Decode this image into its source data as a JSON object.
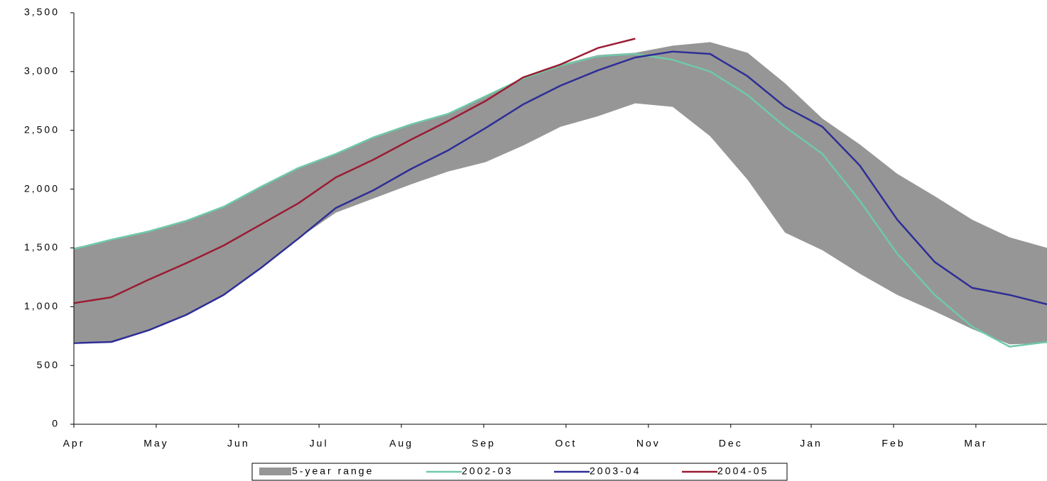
{
  "chart_data": {
    "type": "line",
    "x": [
      0,
      2,
      4,
      6,
      8,
      10,
      12,
      14,
      16,
      18,
      20,
      22,
      24,
      26,
      28,
      30,
      32,
      34,
      36,
      38,
      40,
      42,
      44,
      46,
      48,
      50,
      52
    ],
    "xlim": [
      0,
      52
    ],
    "xticks": [
      {
        "value": 0,
        "label": "Apr"
      },
      {
        "value": 4.4,
        "label": "May"
      },
      {
        "value": 8.8,
        "label": "Jun"
      },
      {
        "value": 13.1,
        "label": "Jul"
      },
      {
        "value": 17.5,
        "label": "Aug"
      },
      {
        "value": 21.9,
        "label": "Sep"
      },
      {
        "value": 26.3,
        "label": "Oct"
      },
      {
        "value": 30.7,
        "label": "Nov"
      },
      {
        "value": 35.1,
        "label": "Dec"
      },
      {
        "value": 39.4,
        "label": "Jan"
      },
      {
        "value": 43.8,
        "label": "Feb"
      },
      {
        "value": 48.2,
        "label": "Mar"
      }
    ],
    "ylim": [
      0,
      3500
    ],
    "yticks": [
      0,
      500,
      {
        "value": 1000,
        "label": "1,000"
      },
      {
        "value": 1500,
        "label": "1,500"
      },
      {
        "value": 2000,
        "label": "2,000"
      },
      {
        "value": 2500,
        "label": "2,500"
      },
      {
        "value": 3000,
        "label": "3,000"
      },
      {
        "value": 3500,
        "label": "3,500"
      }
    ],
    "grid": false,
    "legend": "bottom",
    "series": [
      {
        "name": "5-year range",
        "color": "#969696",
        "type": "range",
        "low": [
          700,
          700,
          800,
          930,
          1100,
          1330,
          1580,
          1800,
          1920,
          2040,
          2150,
          2230,
          2370,
          2530,
          2620,
          2730,
          2700,
          2450,
          2080,
          1630,
          1480,
          1280,
          1100,
          960,
          810,
          680,
          690
        ],
        "high": [
          1500,
          1570,
          1640,
          1730,
          1850,
          2020,
          2180,
          2300,
          2440,
          2550,
          2640,
          2790,
          2940,
          3060,
          3140,
          3160,
          3220,
          3250,
          3160,
          2900,
          2600,
          2380,
          2130,
          1940,
          1740,
          1590,
          1500
        ]
      },
      {
        "name": "2002-03",
        "color": "#6fc9a7",
        "values": [
          1490,
          1570,
          1640,
          1730,
          1850,
          2020,
          2180,
          2300,
          2440,
          2550,
          2640,
          2790,
          2940,
          3050,
          3130,
          3150,
          3100,
          3000,
          2800,
          2530,
          2300,
          1900,
          1450,
          1100,
          830,
          660,
          700
        ]
      },
      {
        "name": "2003-04",
        "color": "#2e2e96",
        "values": [
          690,
          700,
          800,
          930,
          1100,
          1330,
          1580,
          1840,
          1990,
          2170,
          2330,
          2520,
          2720,
          2880,
          3010,
          3120,
          3170,
          3150,
          2960,
          2700,
          2530,
          2200,
          1740,
          1380,
          1160,
          1100,
          1020
        ]
      },
      {
        "name": "2004-05",
        "color": "#9b1c34",
        "values": [
          1030,
          1080,
          1230,
          1370,
          1520,
          1700,
          1880,
          2100,
          2250,
          2420,
          2580,
          2750,
          2950,
          3060,
          3200,
          3280,
          null,
          null,
          null,
          null,
          null,
          null,
          null,
          null,
          null,
          null,
          null
        ]
      }
    ]
  }
}
